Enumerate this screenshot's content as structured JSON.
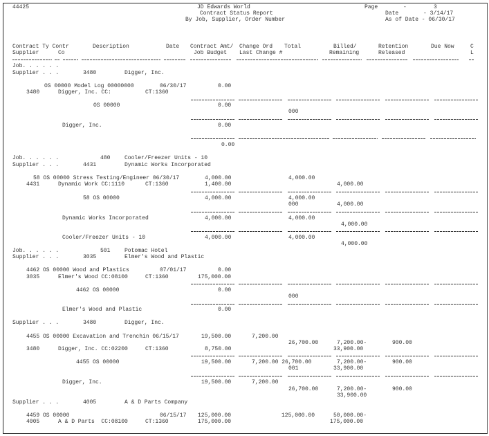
{
  "header": {
    "report_id": "44425",
    "system": "JD Edwards World",
    "title": "Contract Status Report",
    "subtitle": "By Job, Supplier, Order Number",
    "page_label": "Page",
    "page_dash": "-",
    "page_number": "3",
    "date_label": "Date",
    "date_value": "- 3/14/17",
    "as_of_label": "As of Date - 06/30/17"
  },
  "columns": {
    "row1": [
      "Contract Ty Contr",
      "Description",
      "Date",
      "Contract Amt/",
      "Change Ord",
      "Total",
      "Billed/",
      "Retention",
      "Due Now",
      "C"
    ],
    "row2": [
      "Supplier",
      "Co",
      "Job Budget",
      "Last Change #",
      "Remaining",
      "Released",
      "L"
    ]
  },
  "rows": [
    [
      "Job. . . . . ."
    ],
    [
      "Supplier . . .",
      "3480",
      "Digger, Inc."
    ],
    [
      "OS 00000 Model Log 00000000",
      "06/30/17",
      "0.00"
    ],
    [
      "3480",
      "Digger, Inc. CC:",
      "CT:1360"
    ],
    [
      "OS 00000",
      "0.00"
    ],
    [
      "000"
    ],
    [
      "Digger, Inc.",
      "0.00"
    ],
    [
      "0.00"
    ],
    [
      "Job. . . . . .",
      "480",
      "Cooler/Freezer Units - 10"
    ],
    [
      "Supplier . . .",
      "4431",
      "Dynamic Works Incorporated"
    ],
    [
      "58 OS 00000 Stress Testing/Engineer 06/30/17",
      "4,000.00",
      "4,000.00"
    ],
    [
      "4431",
      "Dynamic Work CC:1110",
      "CT:1360",
      "1,400.00",
      "4,000.00"
    ],
    [
      "58 OS 00000",
      "4,000.00",
      "4,000.00"
    ],
    [
      "000",
      "4,000.00"
    ],
    [
      "Dynamic Works Incorporated",
      "4,000.00",
      "4,000.00"
    ],
    [
      "4,000.00"
    ],
    [
      "Cooler/Freezer Units - 10",
      "4,000.00",
      "4,000.00"
    ],
    [
      "4,000.00"
    ],
    [
      "Job. . . . . .",
      "501",
      "Potomac Hotel"
    ],
    [
      "Supplier . . .",
      "3035",
      "Elmer's Wood and Plastic"
    ],
    [
      "4462 OS 00000 Wood and Plastics",
      "07/01/17",
      "0.00"
    ],
    [
      "3035",
      "Elmer's Wood CC:08100",
      "CT:1360",
      "175,000.00"
    ],
    [
      "4462 OS 00000",
      "0.00"
    ],
    [
      "000"
    ],
    [
      "Elmer's Wood and Plastic",
      "0.00"
    ],
    [
      "Supplier . . .",
      "3480",
      "Digger, Inc."
    ],
    [
      "4455 OS 00000 Excavation and Trenchin 06/15/17",
      "19,500.00",
      "7,200.00"
    ],
    [
      "26,700.00",
      "7,200.00-",
      "900.00"
    ],
    [
      "3480",
      "Digger, Inc. CC:02200",
      "CT:1360",
      "8,750.00",
      "33,900.00"
    ],
    [
      "4455 OS 00000",
      "19,500.00",
      "7,200.00 26,700.00",
      "7,200.00-",
      "900.00"
    ],
    [
      "001",
      "33,900.00"
    ],
    [
      "Digger, Inc.",
      "19,500.00",
      "7,200.00"
    ],
    [
      "26,700.00",
      "7,200.00-",
      "900.00"
    ],
    [
      "33,900.00"
    ],
    [
      "Supplier . . .",
      "4005",
      "A & D Parts Company"
    ],
    [
      "4459 OS 00000",
      "06/15/17",
      "125,000.00",
      "125,000.00",
      "50,000.00-"
    ],
    [
      "4005",
      "A & D Parts  CC:08100",
      "CT:1360",
      "175,000.00",
      "175,000.00"
    ]
  ]
}
